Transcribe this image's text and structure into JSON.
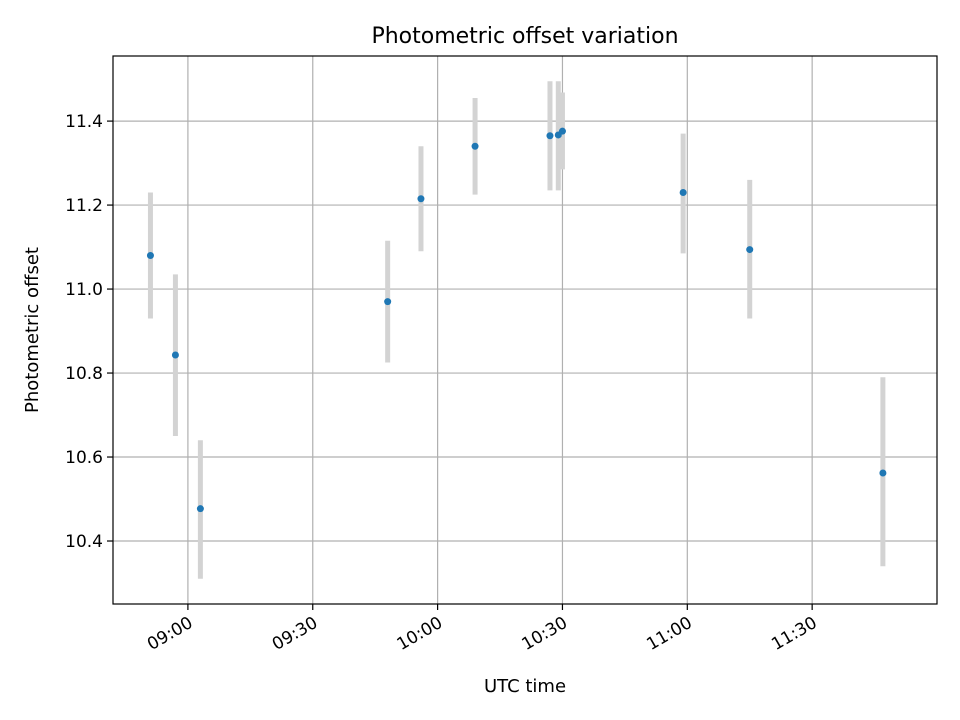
{
  "chart_data": {
    "type": "scatter",
    "title": "Photometric offset variation",
    "xlabel": "UTC time",
    "ylabel": "Photometric offset",
    "x_axis": {
      "type": "time",
      "range": [
        "08:42",
        "12:00"
      ],
      "ticks": [
        "09:00",
        "09:30",
        "10:00",
        "10:30",
        "11:00",
        "11:30"
      ]
    },
    "y_axis": {
      "range": [
        10.25,
        11.555
      ],
      "ticks": [
        "10.4",
        "10.6",
        "10.8",
        "11.0",
        "11.2",
        "11.4"
      ]
    },
    "grid": true,
    "series": [
      {
        "points": [
          {
            "x": "08:51",
            "y": 11.08,
            "err_low": 10.93,
            "err_high": 11.23
          },
          {
            "x": "08:57",
            "y": 10.843,
            "err_low": 10.65,
            "err_high": 11.035
          },
          {
            "x": "09:03",
            "y": 10.477,
            "err_low": 10.31,
            "err_high": 10.64
          },
          {
            "x": "09:48",
            "y": 10.97,
            "err_low": 10.825,
            "err_high": 11.115
          },
          {
            "x": "09:56",
            "y": 11.215,
            "err_low": 11.09,
            "err_high": 11.34
          },
          {
            "x": "10:09",
            "y": 11.34,
            "err_low": 11.225,
            "err_high": 11.455
          },
          {
            "x": "10:27",
            "y": 11.365,
            "err_low": 11.235,
            "err_high": 11.495
          },
          {
            "x": "10:29",
            "y": 11.367,
            "err_low": 11.235,
            "err_high": 11.495
          },
          {
            "x": "10:30",
            "y": 11.376,
            "err_low": 11.285,
            "err_high": 11.468
          },
          {
            "x": "10:59",
            "y": 11.23,
            "err_low": 11.085,
            "err_high": 11.37
          },
          {
            "x": "11:15",
            "y": 11.094,
            "err_low": 10.93,
            "err_high": 11.26
          },
          {
            "x": "11:47",
            "y": 10.562,
            "err_low": 10.34,
            "err_high": 10.79
          }
        ]
      }
    ]
  },
  "colors": {
    "marker": "#1f77b4",
    "errorbar": "#d3d3d3",
    "grid": "#b0b0b0",
    "frame": "#000000"
  }
}
